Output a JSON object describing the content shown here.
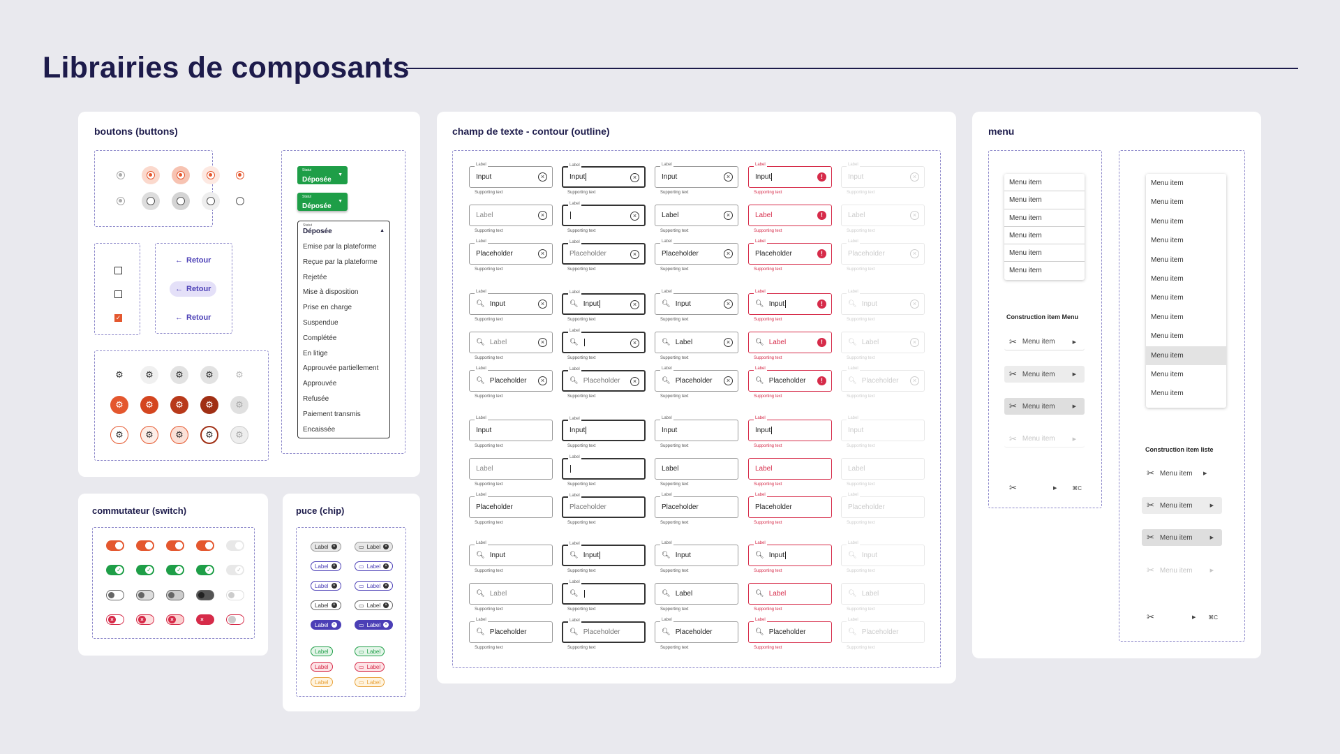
{
  "page": {
    "title": "Librairies de composants"
  },
  "sections": {
    "buttons": "boutons (buttons)",
    "textfield": "champ de texte - contour (outline)",
    "menu": "menu",
    "switch": "commutateur (switch)",
    "chip": "puce (chip)"
  },
  "buttons": {
    "retour_label": "Retour",
    "status_caption": "Statut",
    "status_value": "Déposée",
    "dropdown_items": [
      "Emise par la plateforme",
      "Reçue par la plateforme",
      "Rejetée",
      "Mise à disposition",
      "Prise en charge",
      "Suspendue",
      "Complétée",
      "En litige",
      "Approuvée partiellement",
      "Approuvée",
      "Refusée",
      "Paiement transmis",
      "Encaissée"
    ]
  },
  "textfield": {
    "label": "Label",
    "input": "Input",
    "placeholder": "Placeholder",
    "supporting": "Supporting text",
    "variants": [
      "default",
      "focus",
      "filled",
      "error",
      "disabled"
    ]
  },
  "menu": {
    "item": "Menu item",
    "construction_menu": "Construction item Menu",
    "construction_list": "Construction item liste",
    "shortcut": "⌘C",
    "list_selected_index": 9
  },
  "chip": {
    "label": "Label"
  },
  "colors": {
    "accent": "#e4572e",
    "success": "#1e9e47",
    "error": "#d62b49",
    "primary": "#4b3fb6",
    "title": "#1d1b4b"
  },
  "icons": {
    "search": "search-icon",
    "clear": "clear-icon",
    "error": "error-icon",
    "scissors": "scissors-icon",
    "gear": "gear-icon",
    "arrow": "arrow-left-icon"
  }
}
